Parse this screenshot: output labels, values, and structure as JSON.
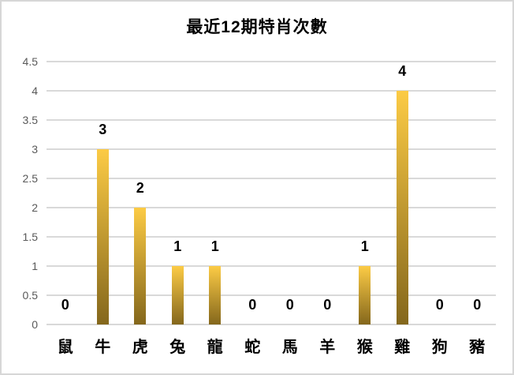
{
  "chart_data": {
    "type": "bar",
    "title": "最近12期特肖次數",
    "categories": [
      "鼠",
      "牛",
      "虎",
      "兔",
      "龍",
      "蛇",
      "馬",
      "羊",
      "猴",
      "雞",
      "狗",
      "豬"
    ],
    "values": [
      0,
      3,
      2,
      1,
      1,
      0,
      0,
      0,
      1,
      4,
      0,
      0
    ],
    "xlabel": "",
    "ylabel": "",
    "ylim": [
      0,
      4.5
    ],
    "ytick_step": 0.5,
    "ytick_labels": [
      "0",
      "0.5",
      "1",
      "1.5",
      "2",
      "2.5",
      "3",
      "3.5",
      "4",
      "4.5"
    ],
    "grid": true,
    "legend": false,
    "data_labels_shown": true,
    "colors": {
      "bar_gradient_top": "#fccb45",
      "bar_gradient_bottom": "#84671c",
      "gridline": "#d9d9d9",
      "axis_tick_label": "#595959",
      "data_label": "#000000",
      "title": "#000000",
      "frame_border": "#d7d7d7",
      "background": "#ffffff"
    }
  }
}
